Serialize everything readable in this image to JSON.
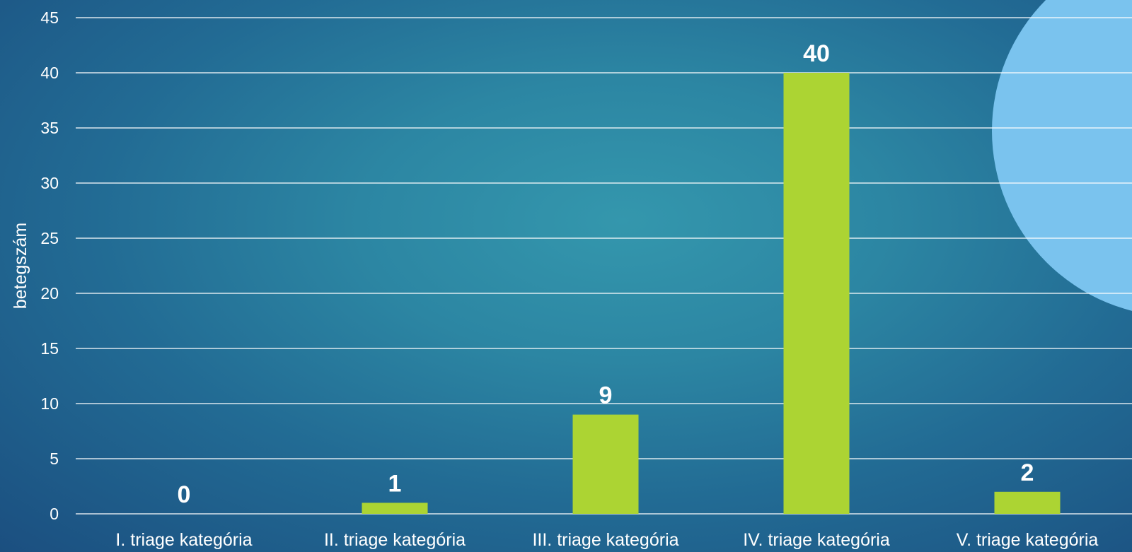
{
  "chart_data": {
    "type": "bar",
    "categories": [
      "I. triage kategória",
      "II. triage kategória",
      "III. triage kategória",
      "IV. triage kategória",
      "V. triage kategória"
    ],
    "values": [
      0,
      1,
      9,
      40,
      2
    ],
    "title": "",
    "xlabel": "",
    "ylabel": "betegszám",
    "ylim": [
      0,
      45
    ],
    "yticks": [
      0,
      5,
      10,
      15,
      20,
      25,
      30,
      35,
      40,
      45
    ],
    "grid": true,
    "data_labels": true,
    "colors": {
      "bar": "#acd433",
      "grid": "#ffffff",
      "text": "#ffffff",
      "decor_circle": "#7ac3ee"
    }
  }
}
